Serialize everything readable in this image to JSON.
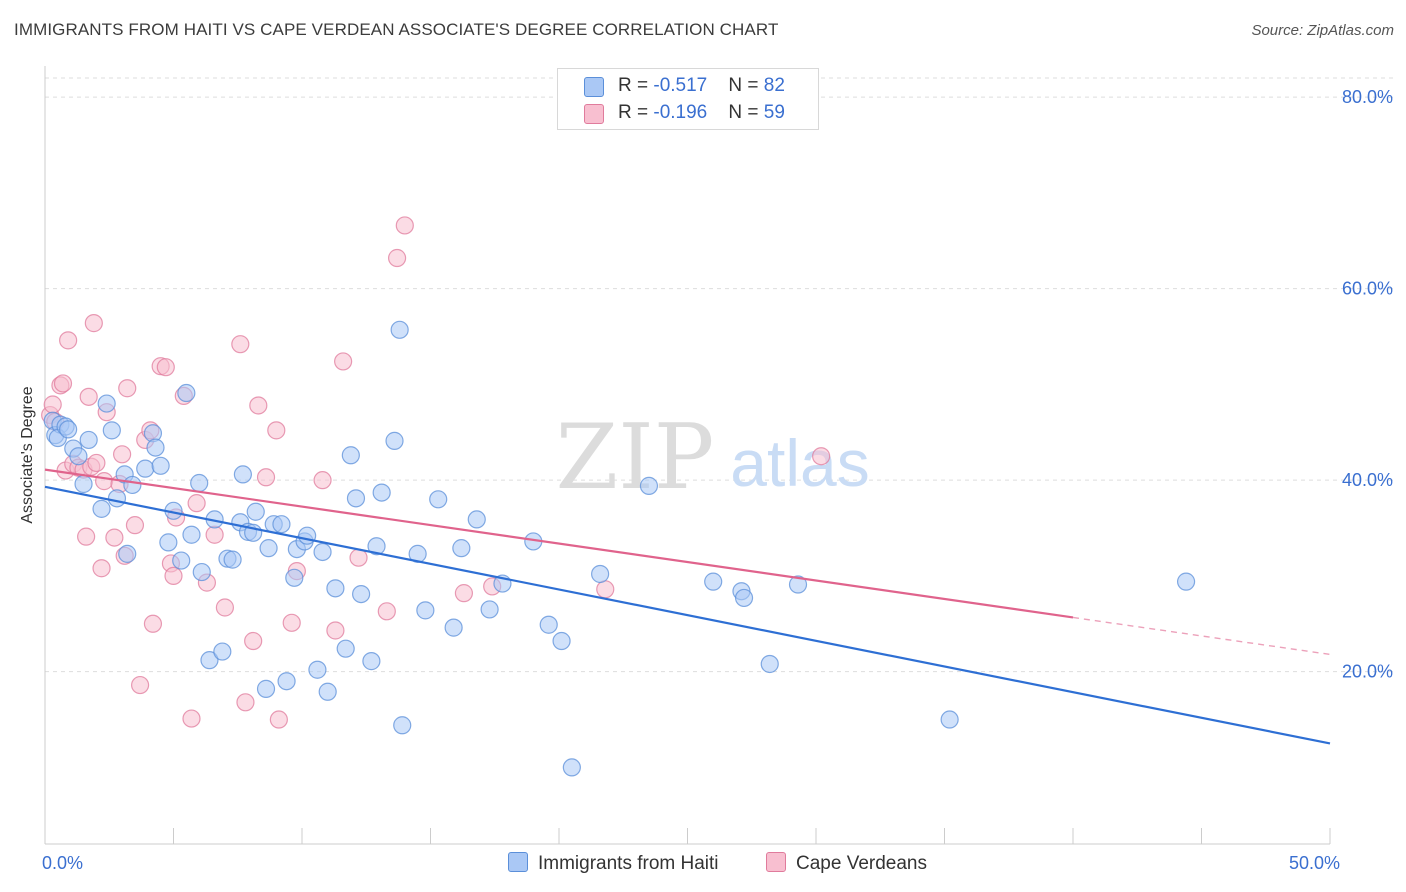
{
  "title": "IMMIGRANTS FROM HAITI VS CAPE VERDEAN ASSOCIATE'S DEGREE CORRELATION CHART",
  "source": "Source: ZipAtlas.com",
  "watermark": {
    "zip": "ZIP",
    "atlas": "atlas"
  },
  "legend_top": [
    {
      "r_label": "R = ",
      "r_value": "-0.517",
      "n_label": "N = ",
      "n_value": "82",
      "color": "#aac8f5"
    },
    {
      "r_label": "R = ",
      "r_value": "-0.196",
      "n_label": "N = ",
      "n_value": "59",
      "color": "#f8bfd0"
    }
  ],
  "legend_bottom": [
    {
      "label": "Immigrants from Haiti",
      "color": "#aac8f5"
    },
    {
      "label": "Cape Verdeans",
      "color": "#f8bfd0"
    }
  ],
  "colors": {
    "haiti_fill": "#aac8f5",
    "haiti_stroke": "#5b8fd9",
    "haiti_line": "#2e6fd4",
    "cv_fill": "#f8bfd0",
    "cv_stroke": "#e07b9c",
    "cv_line": "#e0638c",
    "tick_label": "#3a6fd0",
    "grid": "#dddddd"
  },
  "chart_data": {
    "type": "scatter",
    "title": "IMMIGRANTS FROM HAITI VS CAPE VERDEAN ASSOCIATE'S DEGREE CORRELATION CHART",
    "xlabel": "",
    "ylabel": "Associate's Degree",
    "xlim": [
      0,
      50
    ],
    "ylim": [
      2,
      82
    ],
    "x_tick_labels": [
      {
        "value": 0,
        "label": "0.0%"
      },
      {
        "value": 50,
        "label": "50.0%"
      }
    ],
    "y_tick_labels": [
      {
        "value": 20,
        "label": "20.0%"
      },
      {
        "value": 40,
        "label": "40.0%"
      },
      {
        "value": 60,
        "label": "60.0%"
      },
      {
        "value": 80,
        "label": "80.0%"
      }
    ],
    "grid": true,
    "legend_placement": "top-center",
    "series": [
      {
        "name": "Immigrants from Haiti",
        "trend": {
          "x": [
            0,
            50
          ],
          "y": [
            39.3,
            12.5
          ],
          "dashed_from": null
        },
        "points": [
          [
            0.3,
            46.2
          ],
          [
            0.4,
            44.7
          ],
          [
            0.6,
            45.8
          ],
          [
            0.5,
            44.4
          ],
          [
            0.8,
            45.6
          ],
          [
            0.9,
            45.3
          ],
          [
            1.1,
            43.3
          ],
          [
            1.3,
            42.5
          ],
          [
            1.7,
            44.2
          ],
          [
            2.4,
            48.0
          ],
          [
            2.6,
            45.2
          ],
          [
            1.5,
            39.6
          ],
          [
            2.2,
            37.0
          ],
          [
            2.8,
            38.1
          ],
          [
            3.1,
            40.6
          ],
          [
            3.4,
            39.5
          ],
          [
            3.2,
            32.3
          ],
          [
            3.9,
            41.2
          ],
          [
            4.2,
            44.9
          ],
          [
            4.3,
            43.4
          ],
          [
            4.5,
            41.5
          ],
          [
            4.8,
            33.5
          ],
          [
            5.0,
            36.8
          ],
          [
            5.3,
            31.6
          ],
          [
            5.5,
            49.1
          ],
          [
            5.7,
            34.3
          ],
          [
            6.0,
            39.7
          ],
          [
            6.1,
            30.4
          ],
          [
            6.4,
            21.2
          ],
          [
            6.6,
            35.9
          ],
          [
            6.9,
            22.1
          ],
          [
            7.1,
            31.8
          ],
          [
            7.3,
            31.7
          ],
          [
            7.6,
            35.6
          ],
          [
            7.7,
            40.6
          ],
          [
            7.9,
            34.6
          ],
          [
            8.1,
            34.5
          ],
          [
            8.2,
            36.7
          ],
          [
            8.6,
            18.2
          ],
          [
            8.7,
            32.9
          ],
          [
            8.9,
            35.4
          ],
          [
            9.2,
            35.4
          ],
          [
            9.4,
            19.0
          ],
          [
            9.7,
            29.8
          ],
          [
            9.8,
            32.8
          ],
          [
            10.1,
            33.6
          ],
          [
            10.2,
            34.2
          ],
          [
            10.6,
            20.2
          ],
          [
            10.8,
            32.5
          ],
          [
            11.0,
            17.9
          ],
          [
            11.3,
            28.7
          ],
          [
            11.7,
            22.4
          ],
          [
            11.9,
            42.6
          ],
          [
            12.1,
            38.1
          ],
          [
            12.3,
            28.1
          ],
          [
            12.7,
            21.1
          ],
          [
            12.9,
            33.1
          ],
          [
            13.1,
            38.7
          ],
          [
            13.6,
            44.1
          ],
          [
            13.8,
            55.7
          ],
          [
            13.9,
            14.4
          ],
          [
            14.5,
            32.3
          ],
          [
            14.8,
            26.4
          ],
          [
            15.3,
            38.0
          ],
          [
            15.9,
            24.6
          ],
          [
            16.2,
            32.9
          ],
          [
            16.8,
            35.9
          ],
          [
            17.3,
            26.5
          ],
          [
            17.8,
            29.2
          ],
          [
            19.0,
            33.6
          ],
          [
            19.6,
            24.9
          ],
          [
            20.1,
            23.2
          ],
          [
            20.5,
            10.0
          ],
          [
            21.6,
            30.2
          ],
          [
            23.5,
            39.4
          ],
          [
            26.0,
            29.4
          ],
          [
            27.1,
            28.4
          ],
          [
            27.2,
            27.7
          ],
          [
            28.2,
            20.8
          ],
          [
            29.3,
            29.1
          ],
          [
            35.2,
            15.0
          ],
          [
            44.4,
            29.4
          ]
        ]
      },
      {
        "name": "Cape Verdeans",
        "trend": {
          "x": [
            0,
            50
          ],
          "y": [
            41.1,
            21.8
          ],
          "dashed_from": 40
        },
        "points": [
          [
            0.2,
            46.8
          ],
          [
            0.3,
            47.9
          ],
          [
            0.4,
            46.1
          ],
          [
            0.6,
            49.9
          ],
          [
            0.7,
            50.1
          ],
          [
            0.8,
            41.0
          ],
          [
            0.9,
            54.6
          ],
          [
            1.1,
            41.7
          ],
          [
            1.3,
            41.3
          ],
          [
            1.5,
            41.1
          ],
          [
            1.6,
            34.1
          ],
          [
            1.7,
            48.7
          ],
          [
            1.8,
            41.4
          ],
          [
            1.9,
            56.4
          ],
          [
            2.0,
            41.8
          ],
          [
            2.2,
            30.8
          ],
          [
            2.3,
            39.9
          ],
          [
            2.4,
            47.1
          ],
          [
            2.7,
            34.0
          ],
          [
            2.9,
            39.6
          ],
          [
            3.0,
            42.7
          ],
          [
            3.1,
            32.1
          ],
          [
            3.2,
            49.6
          ],
          [
            3.5,
            35.3
          ],
          [
            3.7,
            18.6
          ],
          [
            3.9,
            44.2
          ],
          [
            4.1,
            45.2
          ],
          [
            4.2,
            25.0
          ],
          [
            4.5,
            51.9
          ],
          [
            4.7,
            51.8
          ],
          [
            4.9,
            31.3
          ],
          [
            5.0,
            30.0
          ],
          [
            5.1,
            36.1
          ],
          [
            5.4,
            48.8
          ],
          [
            5.7,
            15.1
          ],
          [
            5.9,
            37.6
          ],
          [
            6.3,
            29.3
          ],
          [
            6.6,
            34.3
          ],
          [
            7.0,
            26.7
          ],
          [
            7.6,
            54.2
          ],
          [
            7.8,
            16.8
          ],
          [
            8.1,
            23.2
          ],
          [
            8.3,
            47.8
          ],
          [
            8.6,
            40.3
          ],
          [
            9.0,
            45.2
          ],
          [
            9.1,
            15.0
          ],
          [
            9.6,
            25.1
          ],
          [
            9.8,
            30.5
          ],
          [
            10.8,
            40.0
          ],
          [
            11.3,
            24.3
          ],
          [
            11.6,
            52.4
          ],
          [
            12.2,
            31.9
          ],
          [
            13.3,
            26.3
          ],
          [
            13.7,
            63.2
          ],
          [
            14.0,
            66.6
          ],
          [
            16.3,
            28.2
          ],
          [
            17.4,
            28.9
          ],
          [
            21.8,
            28.6
          ],
          [
            30.2,
            42.5
          ]
        ]
      }
    ]
  }
}
